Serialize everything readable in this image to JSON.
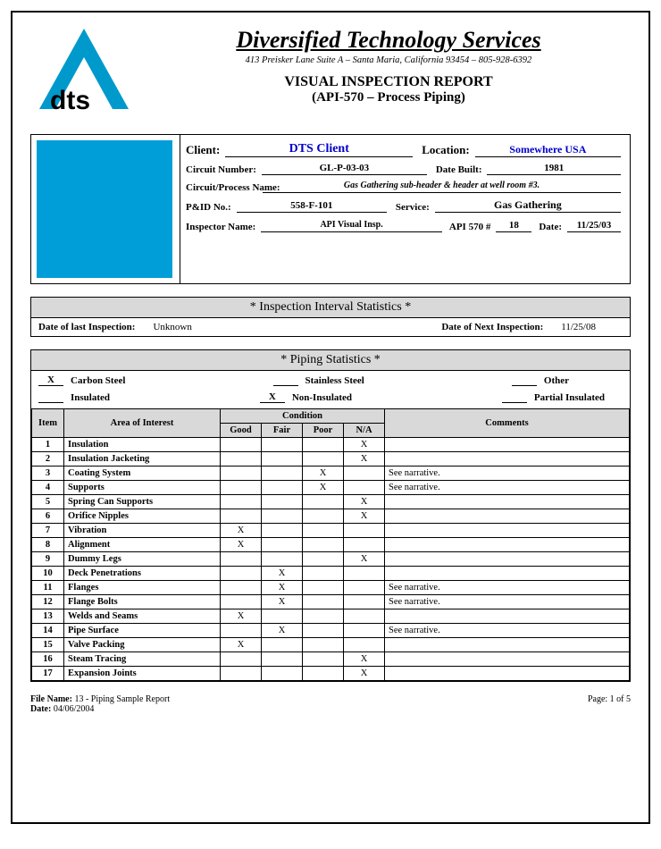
{
  "company": {
    "name": "Diversified Technology Services",
    "address": "413 Preisker Lane Suite A – Santa Maria, California 93454 – 805-928-6392",
    "logo_text": "dts",
    "logo_color": "#0099cc"
  },
  "report": {
    "title": "VISUAL INSPECTION REPORT",
    "subtitle": "(API-570 – Process Piping)"
  },
  "client_info": {
    "client_label": "Client:",
    "client": "DTS Client",
    "location_label": "Location:",
    "location": "Somewhere USA",
    "circuit_number_label": "Circuit Number:",
    "circuit_number": "GL-P-03-03",
    "date_built_label": "Date Built:",
    "date_built": "1981",
    "circuit_process_label": "Circuit/Process Name:",
    "circuit_process": "Gas Gathering sub-header & header at well room #3.",
    "pid_label": "P&ID No.:",
    "pid": "558-F-101",
    "service_label": "Service:",
    "service": "Gas Gathering",
    "inspector_label": "Inspector Name:",
    "inspector": "API Visual Insp.",
    "api570_label": "API 570 #",
    "api570": "18",
    "date_label": "Date:",
    "date": "11/25/03",
    "photo_color": "#009ed8"
  },
  "interval": {
    "title": "* Inspection Interval Statistics *",
    "last_label": "Date of last Inspection:",
    "last": "Unknown",
    "next_label": "Date of Next Inspection:",
    "next": "11/25/08"
  },
  "piping": {
    "title": "* Piping Statistics *",
    "material": {
      "carbon_steel": "X",
      "carbon_steel_label": "Carbon Steel",
      "stainless_steel": "",
      "stainless_steel_label": "Stainless Steel",
      "other": "",
      "other_label": "Other",
      "insulated": "",
      "insulated_label": "Insulated",
      "non_insulated": "X",
      "non_insulated_label": "Non-Insulated",
      "partial_insulated": "",
      "partial_insulated_label": "Partial Insulated"
    },
    "columns": {
      "item": "Item",
      "area": "Area of Interest",
      "condition": "Condition",
      "good": "Good",
      "fair": "Fair",
      "poor": "Poor",
      "na": "N/A",
      "comments": "Comments"
    },
    "rows": [
      {
        "n": "1",
        "area": "Insulation",
        "good": "",
        "fair": "",
        "poor": "",
        "na": "X",
        "cmt": ""
      },
      {
        "n": "2",
        "area": "Insulation Jacketing",
        "good": "",
        "fair": "",
        "poor": "",
        "na": "X",
        "cmt": ""
      },
      {
        "n": "3",
        "area": "Coating System",
        "good": "",
        "fair": "",
        "poor": "X",
        "na": "",
        "cmt": "See narrative."
      },
      {
        "n": "4",
        "area": "Supports",
        "good": "",
        "fair": "",
        "poor": "X",
        "na": "",
        "cmt": "See narrative."
      },
      {
        "n": "5",
        "area": "Spring Can Supports",
        "good": "",
        "fair": "",
        "poor": "",
        "na": "X",
        "cmt": ""
      },
      {
        "n": "6",
        "area": "Orifice Nipples",
        "good": "",
        "fair": "",
        "poor": "",
        "na": "X",
        "cmt": ""
      },
      {
        "n": "7",
        "area": "Vibration",
        "good": "X",
        "fair": "",
        "poor": "",
        "na": "",
        "cmt": ""
      },
      {
        "n": "8",
        "area": "Alignment",
        "good": "X",
        "fair": "",
        "poor": "",
        "na": "",
        "cmt": ""
      },
      {
        "n": "9",
        "area": "Dummy Legs",
        "good": "",
        "fair": "",
        "poor": "",
        "na": "X",
        "cmt": ""
      },
      {
        "n": "10",
        "area": "Deck Penetrations",
        "good": "",
        "fair": "X",
        "poor": "",
        "na": "",
        "cmt": ""
      },
      {
        "n": "11",
        "area": "Flanges",
        "good": "",
        "fair": "X",
        "poor": "",
        "na": "",
        "cmt": "See narrative."
      },
      {
        "n": "12",
        "area": "Flange Bolts",
        "good": "",
        "fair": "X",
        "poor": "",
        "na": "",
        "cmt": "See narrative."
      },
      {
        "n": "13",
        "area": "Welds and Seams",
        "good": "X",
        "fair": "",
        "poor": "",
        "na": "",
        "cmt": ""
      },
      {
        "n": "14",
        "area": "Pipe Surface",
        "good": "",
        "fair": "X",
        "poor": "",
        "na": "",
        "cmt": "See narrative."
      },
      {
        "n": "15",
        "area": "Valve Packing",
        "good": "X",
        "fair": "",
        "poor": "",
        "na": "",
        "cmt": ""
      },
      {
        "n": "16",
        "area": "Steam Tracing",
        "good": "",
        "fair": "",
        "poor": "",
        "na": "X",
        "cmt": ""
      },
      {
        "n": "17",
        "area": "Expansion Joints",
        "good": "",
        "fair": "",
        "poor": "",
        "na": "X",
        "cmt": ""
      }
    ]
  },
  "footer": {
    "file_label": "File Name:",
    "file": "13 - Piping Sample Report",
    "date_label": "Date:",
    "date": "04/06/2004",
    "page": "Page: 1 of 5"
  },
  "style": {
    "gray": "#d9d9d9",
    "border": "#000000",
    "blue_text": "#0000cc",
    "font_family": "Times New Roman",
    "base_fontsize": 11
  }
}
